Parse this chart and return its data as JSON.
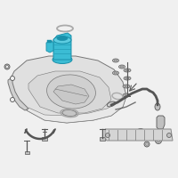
{
  "background_color": "#f0f0f0",
  "line_color": "#777777",
  "part_color": "#cccccc",
  "highlight_color": "#3bbcd4",
  "highlight_color2": "#1a90aa",
  "highlight_color3": "#5dcce0",
  "dark_line": "#555555",
  "tank_fill": "#e0e0e0",
  "tank_edge": "#777777",
  "skid_fill": "#d5d5d5",
  "skid_line": "#888888",
  "small_part_color": "#c0c0c0",
  "white": "#ffffff",
  "oring_color": "#aaaaaa"
}
